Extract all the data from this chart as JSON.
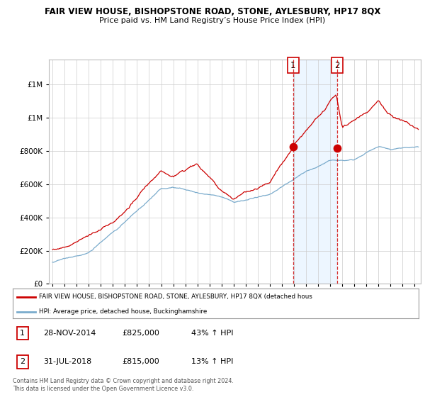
{
  "title": "FAIR VIEW HOUSE, BISHOPSTONE ROAD, STONE, AYLESBURY, HP17 8QX",
  "subtitle": "Price paid vs. HM Land Registry’s House Price Index (HPI)",
  "ytick_vals": [
    0,
    200000,
    400000,
    600000,
    800000,
    1000000,
    1200000
  ],
  "ylim": [
    0,
    1350000
  ],
  "xlim_start": 1994.7,
  "xlim_end": 2025.5,
  "red_color": "#cc0000",
  "blue_color": "#7aabcc",
  "blue_fill_color": "#ddeeff",
  "transaction1": {
    "date_num": 2014.92,
    "price": 825000,
    "label": "1"
  },
  "transaction2": {
    "date_num": 2018.58,
    "price": 815000,
    "label": "2"
  },
  "legend_red_label": "FAIR VIEW HOUSE, BISHOPSTONE ROAD, STONE, AYLESBURY, HP17 8QX (detached hous",
  "legend_blue_label": "HPI: Average price, detached house, Buckinghamshire",
  "table_rows": [
    {
      "num": "1",
      "date": "28-NOV-2014",
      "price": "£825,000",
      "change": "43% ↑ HPI"
    },
    {
      "num": "2",
      "date": "31-JUL-2018",
      "price": "£815,000",
      "change": "13% ↑ HPI"
    }
  ],
  "footnote": "Contains HM Land Registry data © Crown copyright and database right 2024.\nThis data is licensed under the Open Government Licence v3.0.",
  "background_color": "#ffffff",
  "grid_color": "#cccccc"
}
